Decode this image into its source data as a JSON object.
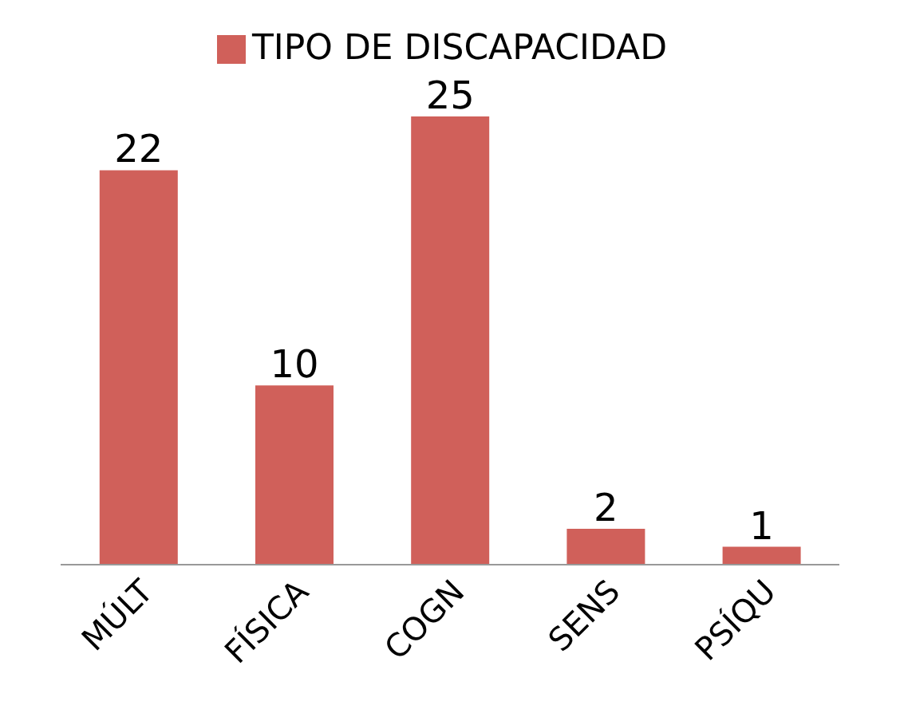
{
  "chart_data": {
    "type": "bar",
    "categories": [
      "MÚLT",
      "FÍSICA",
      "COGN",
      "SENS",
      "PSÍQU"
    ],
    "series": [
      {
        "name": "TIPO DE DISCAPACIDAD",
        "color": "#d0605a",
        "values": [
          22,
          10,
          25,
          2,
          1
        ]
      }
    ],
    "data_labels": true,
    "legend": "top",
    "grid": false
  }
}
